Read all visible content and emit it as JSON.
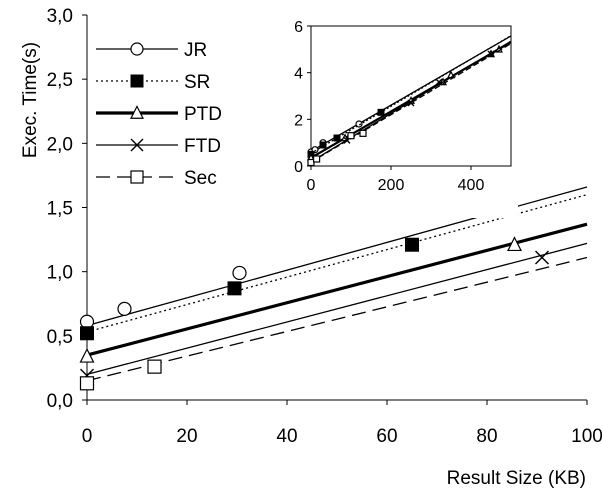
{
  "chart_data": [
    {
      "type": "line",
      "panel": "main",
      "xlabel": "Result Size (KB)",
      "ylabel": "Exec. Time(s)",
      "xlim": [
        0,
        100
      ],
      "ylim": [
        0,
        3
      ],
      "x_ticks": [
        "0",
        "20",
        "40",
        "60",
        "80",
        "100"
      ],
      "y_ticks": [
        "0,0",
        "0,5",
        "1,0",
        "1,5",
        "2,0",
        "2,5",
        "3,0"
      ],
      "grid": false,
      "legend_position": "top-left",
      "series": [
        {
          "name": "JR",
          "marker": "circle-open",
          "line": "solid-thin",
          "trend": [
            [
              0,
              0.58
            ],
            [
              100,
              1.66
            ]
          ],
          "points": [
            [
              0,
              0.61
            ],
            [
              7.5,
              0.71
            ],
            [
              30.5,
              0.99
            ]
          ]
        },
        {
          "name": "SR",
          "marker": "square-filled",
          "line": "dotted",
          "trend": [
            [
              0,
              0.53
            ],
            [
              100,
              1.6
            ]
          ],
          "points": [
            [
              0,
              0.52
            ],
            [
              29.5,
              0.87
            ],
            [
              65,
              1.21
            ]
          ]
        },
        {
          "name": "PTD",
          "marker": "triangle-open",
          "line": "solid-thick",
          "trend": [
            [
              0,
              0.35
            ],
            [
              100,
              1.37
            ]
          ],
          "points": [
            [
              0,
              0.34
            ],
            [
              85.5,
              1.21
            ]
          ]
        },
        {
          "name": "FTD",
          "marker": "cross",
          "line": "solid-thin",
          "trend": [
            [
              0,
              0.2
            ],
            [
              100,
              1.22
            ]
          ],
          "points": [
            [
              0,
              0.19
            ],
            [
              91,
              1.11
            ]
          ]
        },
        {
          "name": "Sec",
          "marker": "square-open",
          "line": "dashed",
          "trend": [
            [
              0,
              0.15
            ],
            [
              100,
              1.11
            ]
          ],
          "points": [
            [
              0,
              0.13
            ],
            [
              13.5,
              0.26
            ]
          ]
        }
      ]
    },
    {
      "type": "line",
      "panel": "inset",
      "xlim": [
        0,
        500
      ],
      "ylim": [
        0,
        6
      ],
      "x_ticks": [
        "0",
        "200",
        "400"
      ],
      "y_ticks": [
        "0",
        "2",
        "4",
        "6"
      ],
      "grid": false,
      "series": [
        {
          "name": "JR",
          "points": [
            [
              0,
              0.6
            ],
            [
              10,
              0.7
            ],
            [
              30,
              1.0
            ],
            [
              120,
              1.8
            ]
          ]
        },
        {
          "name": "SR",
          "points": [
            [
              0,
              0.5
            ],
            [
              30,
              0.9
            ],
            [
              65,
              1.2
            ],
            [
              175,
              2.3
            ]
          ]
        },
        {
          "name": "PTD",
          "points": [
            [
              0,
              0.35
            ],
            [
              85,
              1.2
            ],
            [
              250,
              2.8
            ],
            [
              330,
              3.6
            ],
            [
              350,
              3.9
            ],
            [
              450,
              4.8
            ],
            [
              470,
              5.0
            ]
          ]
        },
        {
          "name": "FTD",
          "points": [
            [
              0,
              0.2
            ],
            [
              90,
              1.1
            ],
            [
              250,
              2.7
            ],
            [
              320,
              3.6
            ],
            [
              450,
              4.8
            ]
          ]
        },
        {
          "name": "Sec",
          "points": [
            [
              0,
              0.15
            ],
            [
              14,
              0.3
            ],
            [
              100,
              1.3
            ],
            [
              130,
              1.4
            ]
          ]
        }
      ]
    }
  ]
}
